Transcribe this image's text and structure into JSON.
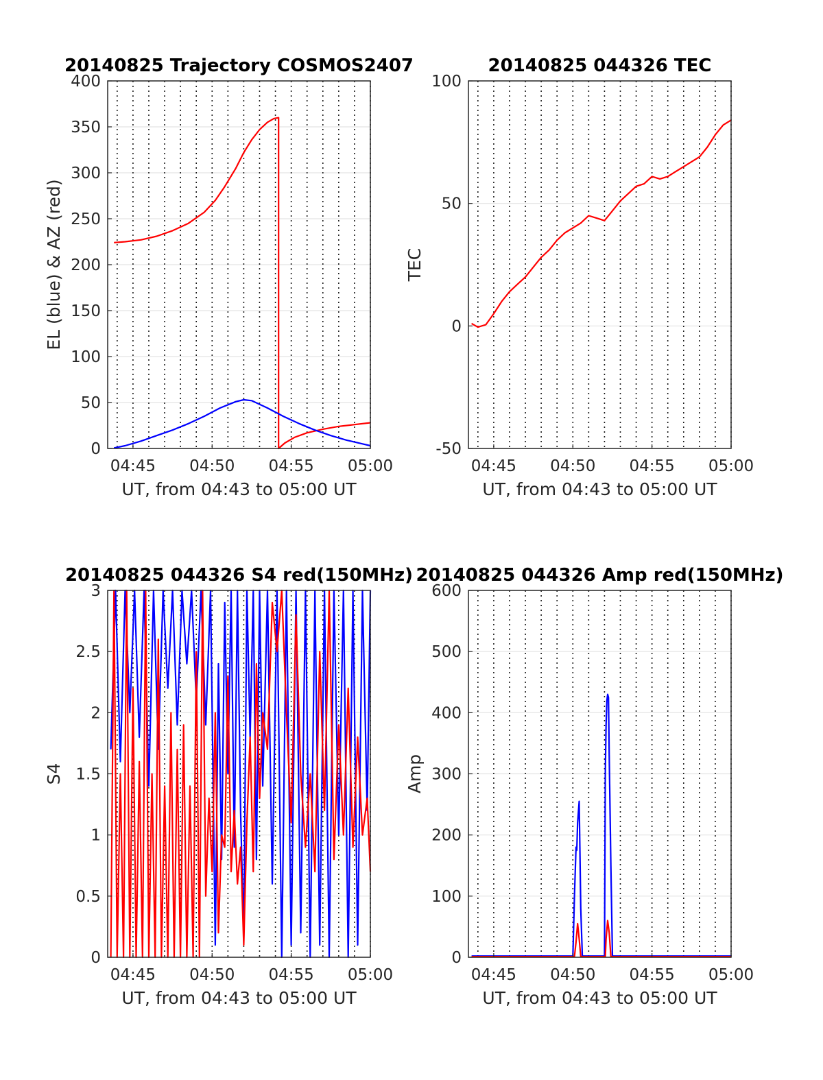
{
  "figure": {
    "background": "#ffffff"
  },
  "chart_data": [
    {
      "type": "line",
      "title": "20140825 Trajectory COSMOS2407",
      "xlabel": "UT, from 04:43 to 05:00 UT",
      "ylabel": "EL (blue) & AZ (red)",
      "xlim_minutes": [
        43.4,
        60
      ],
      "ylim": [
        0,
        400
      ],
      "x_ticks": [
        "04:45",
        "04:50",
        "04:55",
        "05:00"
      ],
      "y_ticks": [
        "0",
        "50",
        "100",
        "150",
        "200",
        "250",
        "300",
        "350",
        "400"
      ],
      "grid": true,
      "series": [
        {
          "color": "#ff0000",
          "x": [
            43.8,
            44.5,
            45.5,
            46.5,
            47.5,
            48.5,
            49.5,
            50.2,
            50.8,
            51.5,
            52.0,
            52.5,
            53.0,
            53.5,
            53.9,
            54.2,
            54.2,
            54.6,
            55.2,
            56.0,
            57.0,
            58.0,
            59.0,
            60.0
          ],
          "y": [
            224,
            225,
            227,
            231,
            237,
            245,
            257,
            270,
            285,
            305,
            322,
            336,
            347,
            355,
            359,
            360,
            0,
            6,
            12,
            17,
            21,
            24,
            26,
            28
          ]
        },
        {
          "color": "#0000ff",
          "x": [
            43.8,
            44.5,
            45.5,
            46.5,
            47.5,
            48.5,
            49.5,
            50.5,
            51.5,
            52.0,
            52.5,
            53.5,
            54.5,
            55.5,
            56.5,
            57.5,
            58.5,
            59.5,
            60.0
          ],
          "y": [
            0.5,
            3,
            8,
            14,
            20,
            27,
            35,
            44,
            51,
            53,
            52,
            44,
            35,
            27,
            20,
            14,
            9,
            5,
            3
          ]
        }
      ]
    },
    {
      "type": "line",
      "title": "20140825 044326 TEC",
      "xlabel": "UT, from 04:43 to 05:00 UT",
      "ylabel": "TEC",
      "xlim_minutes": [
        43.4,
        60
      ],
      "ylim": [
        -50,
        100
      ],
      "x_ticks": [
        "04:45",
        "04:50",
        "04:55",
        "05:00"
      ],
      "y_ticks": [
        "-50",
        "0",
        "50",
        "100"
      ],
      "grid": true,
      "series": [
        {
          "color": "#ff0000",
          "x": [
            43.6,
            44.0,
            44.5,
            45.0,
            45.5,
            46.0,
            46.5,
            47.0,
            47.5,
            48.0,
            48.5,
            49.0,
            49.5,
            50.0,
            50.5,
            51.0,
            51.5,
            52.0,
            52.5,
            53.0,
            53.5,
            54.0,
            54.5,
            55.0,
            55.5,
            56.0,
            56.5,
            57.0,
            57.5,
            58.0,
            58.5,
            59.0,
            59.5,
            60.0
          ],
          "y": [
            1,
            -0.5,
            0.5,
            5,
            10,
            14,
            17,
            20,
            24,
            28,
            31,
            35,
            38,
            40,
            42,
            45,
            44,
            43,
            47,
            51,
            54,
            57,
            58,
            61,
            60,
            61,
            63,
            65,
            67,
            69,
            73,
            78,
            82,
            84
          ]
        }
      ]
    },
    {
      "type": "line",
      "title": "20140825 044326 S4 red(150MHz)",
      "xlabel": "UT, from 04:43 to 05:00 UT",
      "ylabel": "S4",
      "xlim_minutes": [
        43.4,
        60
      ],
      "ylim": [
        0,
        3
      ],
      "x_ticks": [
        "04:45",
        "04:50",
        "04:55",
        "05:00"
      ],
      "y_ticks": [
        "0",
        "0.5",
        "1",
        "1.5",
        "2",
        "2.5",
        "3"
      ],
      "grid": true,
      "series": [
        {
          "color": "#0000ff",
          "x": [
            43.6,
            43.9,
            44.2,
            44.5,
            44.8,
            45.1,
            45.4,
            45.7,
            46.0,
            46.3,
            46.6,
            46.9,
            47.2,
            47.5,
            47.8,
            48.1,
            48.4,
            48.7,
            49.0,
            49.3,
            49.6,
            49.9,
            50.2,
            50.4,
            50.6,
            50.8,
            51.0,
            51.2,
            51.4,
            51.6,
            51.8,
            52.0,
            52.2,
            52.4,
            52.6,
            52.8,
            53.0,
            53.2,
            53.5,
            53.8,
            54.1,
            54.4,
            54.7,
            55.0,
            55.3,
            55.6,
            55.9,
            56.2,
            56.5,
            56.8,
            57.1,
            57.4,
            57.7,
            58.0,
            58.3,
            58.6,
            58.9,
            59.2,
            59.5,
            59.8,
            60.0
          ],
          "y": [
            1.7,
            3,
            1.6,
            3,
            2.0,
            3,
            1.8,
            3,
            1.4,
            3,
            1.7,
            3,
            2.2,
            3,
            1.9,
            3,
            2.4,
            3,
            2.1,
            3,
            1.9,
            3,
            0.1,
            2.4,
            0.8,
            2.9,
            1.5,
            3,
            0.9,
            3,
            1.2,
            0.15,
            3,
            1.8,
            3,
            0.8,
            3,
            1.4,
            3,
            0.6,
            3,
            0.0,
            3,
            0.1,
            3,
            0.2,
            3,
            0.0,
            3,
            0.1,
            3,
            0.0,
            3,
            1.0,
            3,
            0.0,
            3,
            0.1,
            3,
            1.2,
            3
          ]
        },
        {
          "color": "#ff0000",
          "x": [
            43.6,
            43.8,
            44.0,
            44.2,
            44.4,
            44.6,
            44.8,
            45.0,
            45.2,
            45.4,
            45.6,
            45.8,
            46.0,
            46.2,
            46.4,
            46.6,
            46.8,
            47.0,
            47.2,
            47.4,
            47.6,
            47.8,
            48.0,
            48.2,
            48.4,
            48.6,
            48.8,
            49.0,
            49.2,
            49.4,
            49.6,
            49.8,
            50.0,
            50.2,
            50.4,
            50.6,
            50.8,
            51.0,
            51.2,
            51.4,
            51.6,
            51.8,
            52.0,
            52.2,
            52.4,
            52.6,
            52.8,
            53.0,
            53.2,
            53.5,
            53.8,
            54.1,
            54.4,
            54.7,
            55.0,
            55.3,
            55.6,
            55.9,
            56.2,
            56.5,
            56.8,
            57.1,
            57.4,
            57.7,
            58.0,
            58.3,
            58.6,
            58.9,
            59.2,
            59.5,
            59.8,
            60.0
          ],
          "y": [
            0,
            3,
            0,
            1.5,
            0,
            3,
            0,
            2.2,
            0,
            1.6,
            0,
            3,
            0,
            1.5,
            0,
            2.6,
            0,
            1.4,
            0,
            2.0,
            0,
            1.7,
            0,
            1.9,
            0,
            1.4,
            0,
            2.5,
            0,
            3,
            0.5,
            1.3,
            0.7,
            2.0,
            0.2,
            1.0,
            0.9,
            2.3,
            0.7,
            1.2,
            0.6,
            0.9,
            0.1,
            1.1,
            1.8,
            0.7,
            2.4,
            1.3,
            2.0,
            1.7,
            2.9,
            2.5,
            3,
            2.0,
            1.1,
            2.8,
            1.5,
            0.9,
            1.5,
            0.7,
            2.5,
            1.2,
            3,
            0.8,
            1.9,
            1.0,
            2.2,
            0.9,
            1.8,
            1.0,
            1.3,
            0.7
          ]
        }
      ]
    },
    {
      "type": "line",
      "title": "20140825 044326 Amp red(150MHz)",
      "xlabel": "UT, from 04:43 to 05:00 UT",
      "ylabel": "Amp",
      "xlim_minutes": [
        43.4,
        60
      ],
      "ylim": [
        0,
        600
      ],
      "x_ticks": [
        "04:45",
        "04:50",
        "04:55",
        "05:00"
      ],
      "y_ticks": [
        "0",
        "100",
        "200",
        "300",
        "400",
        "500",
        "600"
      ],
      "grid": true,
      "series": [
        {
          "color": "#0000ff",
          "x": [
            43.6,
            50.0,
            50.1,
            50.2,
            50.25,
            50.3,
            50.4,
            50.5,
            50.6,
            52.0,
            52.05,
            52.1,
            52.15,
            52.2,
            52.25,
            52.3,
            52.4,
            52.5,
            60.0
          ],
          "y": [
            2,
            2,
            100,
            180,
            175,
            220,
            255,
            80,
            2,
            2,
            300,
            380,
            420,
            430,
            425,
            330,
            150,
            2,
            2
          ]
        },
        {
          "color": "#ff0000",
          "x": [
            43.6,
            50.1,
            50.2,
            50.3,
            50.4,
            50.5,
            52.05,
            52.1,
            52.2,
            52.3,
            52.4,
            60.0
          ],
          "y": [
            1,
            1,
            25,
            55,
            30,
            1,
            1,
            30,
            60,
            40,
            1,
            1
          ]
        }
      ]
    }
  ]
}
